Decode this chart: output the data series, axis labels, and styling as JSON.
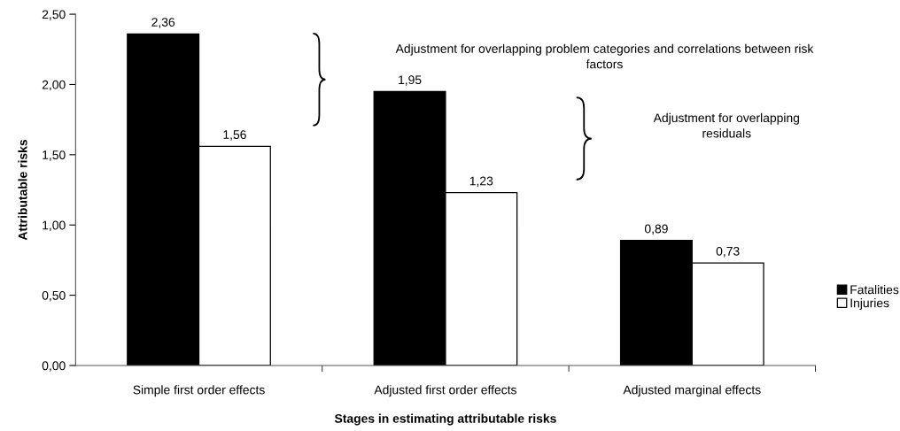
{
  "chart_data": {
    "type": "bar",
    "categories": [
      "Simple first order effects",
      "Adjusted first order effects",
      "Adjusted marginal effects"
    ],
    "series": [
      {
        "name": "Fatalities",
        "color": "#000000",
        "values": [
          2.36,
          1.95,
          0.89
        ],
        "value_labels": [
          "2,36",
          "1,95",
          "0,89"
        ]
      },
      {
        "name": "Injuries",
        "color": "#ffffff",
        "values": [
          1.56,
          1.23,
          0.73
        ],
        "value_labels": [
          "1,56",
          "1,23",
          "0,73"
        ]
      }
    ],
    "xlabel": "Stages in estimating attributable risks",
    "ylabel": "Attributable risks",
    "ylim": [
      0,
      2.5
    ],
    "yticks": [
      {
        "value": 0,
        "label": "0,00"
      },
      {
        "value": 0.5,
        "label": "0,50"
      },
      {
        "value": 1,
        "label": "1,00"
      },
      {
        "value": 1.5,
        "label": "1,50"
      },
      {
        "value": 2,
        "label": "2,00"
      },
      {
        "value": 2.5,
        "label": "2,50"
      }
    ],
    "annotations": [
      "Adjustment for overlapping problem categories and correlations between risk factors",
      "Adjustment for overlapping residuals"
    ],
    "legend": "right",
    "grid": false
  }
}
